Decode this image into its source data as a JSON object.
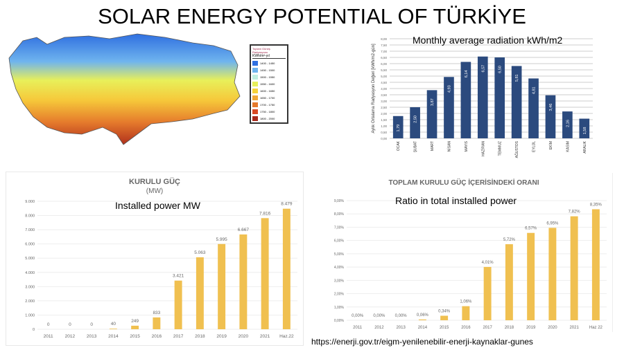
{
  "title": "SOLAR ENERGY POTENTIAL OF TÜRKİYE",
  "map": {
    "legend_title": "Toplam Güneş Radyasyonu",
    "legend_unit": "KWh/m²-yıl",
    "legend": [
      {
        "range": "1400 - 1450",
        "color": "#2f6fe0"
      },
      {
        "range": "1450 - 1500",
        "color": "#6fb4ee"
      },
      {
        "range": "1500 - 1550",
        "color": "#bfeee0"
      },
      {
        "range": "1550 - 1600",
        "color": "#e8f05a"
      },
      {
        "range": "1600 - 1650",
        "color": "#f6d23a"
      },
      {
        "range": "1650 - 1700",
        "color": "#f0a838"
      },
      {
        "range": "1700 - 1750",
        "color": "#e57a2c"
      },
      {
        "range": "1750 - 1800",
        "color": "#d84a24"
      },
      {
        "range": "1800 - 2000",
        "color": "#a82a1c"
      }
    ]
  },
  "overlays": {
    "radiation": "Monthly average radiation kWh/m2",
    "installed": "Installed power MW",
    "ratio": "Ratio in total installed power"
  },
  "source_url": "https://enerji.gov.tr/eigm-yenilenebilir-enerji-kaynaklar-gunes",
  "chart_data": [
    {
      "type": "bar",
      "title": "",
      "ylabel": "Aylık Ortalama Radyasyon Değeri [kWh/m2-gün]",
      "categories": [
        "OCAK",
        "ŞUBAT",
        "MART",
        "NİSAN",
        "MAYIS",
        "HAZİRAN",
        "TEMMUZ",
        "AĞUSTOS",
        "EYLÜL",
        "EKİM",
        "KASIM",
        "ARALIK"
      ],
      "values": [
        1.79,
        2.5,
        3.87,
        4.93,
        6.14,
        6.57,
        6.5,
        5.81,
        4.81,
        3.46,
        2.16,
        1.58
      ],
      "labels": [
        "1,79",
        "2,50",
        "3,87",
        "4,93",
        "6,14",
        "6,57",
        "6,50",
        "5,81",
        "4,81",
        "3,46",
        "2,16",
        "1,58"
      ],
      "ylim": [
        0,
        8
      ],
      "yticks": [
        "0,00",
        "0,50",
        "1,00",
        "1,50",
        "2,00",
        "2,50",
        "3,00",
        "3,50",
        "4,00",
        "4,50",
        "5,00",
        "5,50",
        "6,00",
        "6,50",
        "7,00",
        "7,50",
        "8,00"
      ],
      "color": "#2b4a7e",
      "grid": true
    },
    {
      "type": "bar",
      "title": "KURULU GÜÇ",
      "subtitle": "(MW)",
      "categories": [
        "2011",
        "2012",
        "2013",
        "2014",
        "2015",
        "2016",
        "2017",
        "2018",
        "2019",
        "2020",
        "2021",
        "Haz.22"
      ],
      "values": [
        0,
        0,
        0,
        40,
        249,
        833,
        3421,
        5063,
        5995,
        6667,
        7816,
        8479
      ],
      "labels": [
        "0",
        "0",
        "0",
        "40",
        "249",
        "833",
        "3.421",
        "5.063",
        "5.995",
        "6.667",
        "7.816",
        "8.479"
      ],
      "ylim": [
        0,
        9000
      ],
      "yticks": [
        "0",
        "1.000",
        "2.000",
        "3.000",
        "4.000",
        "5.000",
        "6.000",
        "7.000",
        "8.000",
        "9.000"
      ],
      "color": "#f0c050",
      "grid": true
    },
    {
      "type": "bar",
      "title": "TOPLAM KURULU GÜÇ İÇERİSİNDEKİ ORANI",
      "categories": [
        "2011",
        "2012",
        "2013",
        "2014",
        "2015",
        "2016",
        "2017",
        "2018",
        "2019",
        "2020",
        "2021",
        "Haz 22"
      ],
      "values": [
        0,
        0,
        0,
        0.06,
        0.34,
        1.06,
        4.01,
        5.72,
        6.57,
        6.95,
        7.82,
        8.35
      ],
      "labels": [
        "0,00%",
        "0,00%",
        "0,00%",
        "0,06%",
        "0,34%",
        "1,06%",
        "4,01%",
        "5,72%",
        "6,57%",
        "6,95%",
        "7,82%",
        "8,35%"
      ],
      "ylim": [
        0,
        9
      ],
      "yticks": [
        "0,00%",
        "1,00%",
        "2,00%",
        "3,00%",
        "4,00%",
        "5,00%",
        "6,00%",
        "7,00%",
        "8,00%",
        "9,00%"
      ],
      "color": "#f0c050",
      "grid": true
    }
  ]
}
